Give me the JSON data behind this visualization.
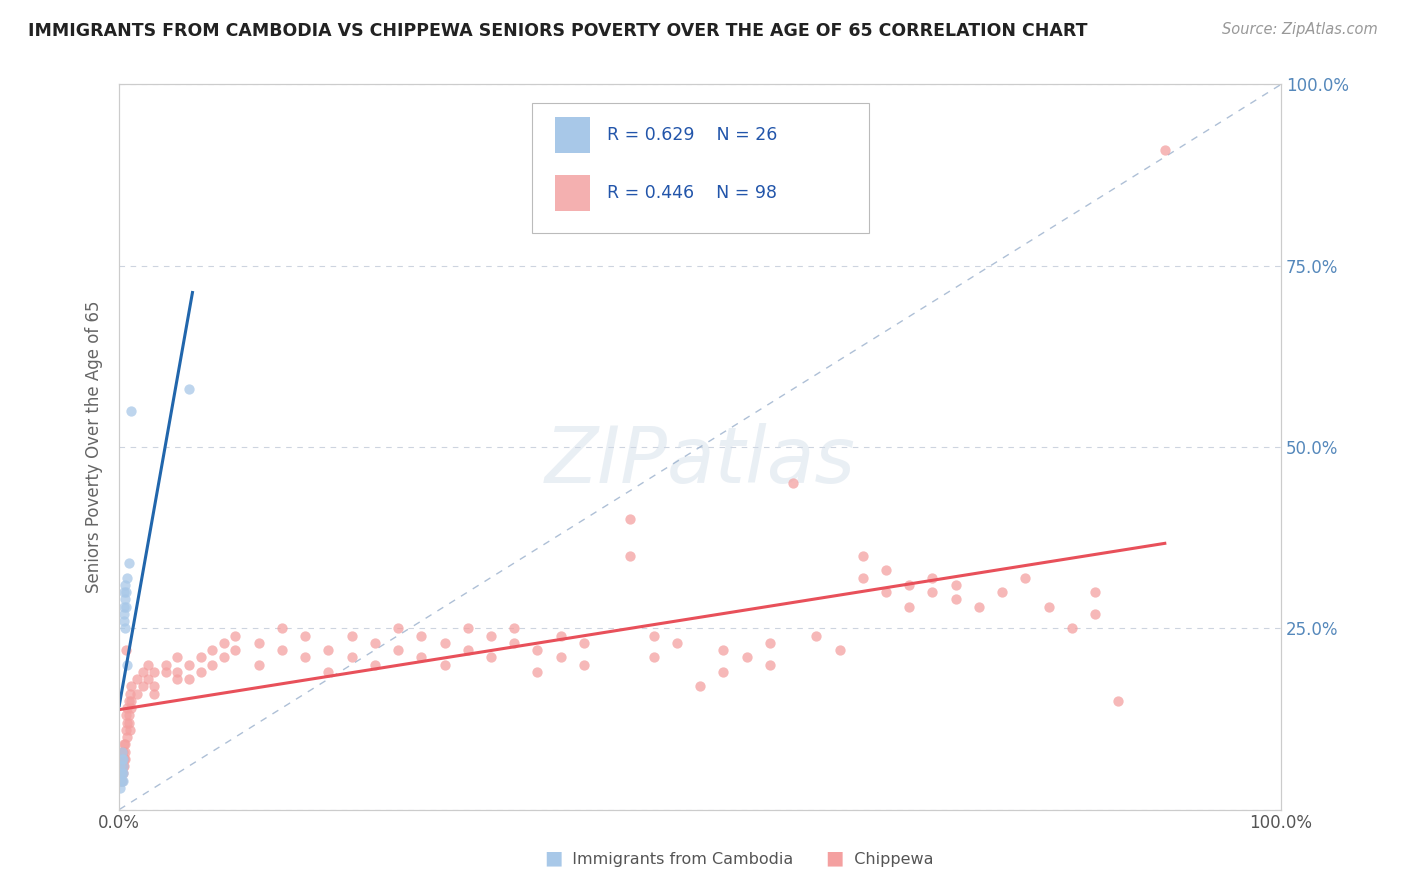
{
  "title": "IMMIGRANTS FROM CAMBODIA VS CHIPPEWA SENIORS POVERTY OVER THE AGE OF 65 CORRELATION CHART",
  "source": "Source: ZipAtlas.com",
  "ylabel": "Seniors Poverty Over the Age of 65",
  "xlim": [
    0,
    1
  ],
  "ylim": [
    0,
    1
  ],
  "watermark": "ZIPatlas",
  "blue_color": "#a8c8e8",
  "pink_color": "#f4a0a0",
  "blue_line_color": "#2166ac",
  "pink_line_color": "#e8505a",
  "blue_scatter": [
    [
      0.001,
      0.04
    ],
    [
      0.001,
      0.05
    ],
    [
      0.001,
      0.06
    ],
    [
      0.001,
      0.03
    ],
    [
      0.002,
      0.07
    ],
    [
      0.002,
      0.05
    ],
    [
      0.002,
      0.04
    ],
    [
      0.002,
      0.08
    ],
    [
      0.003,
      0.06
    ],
    [
      0.003,
      0.05
    ],
    [
      0.003,
      0.07
    ],
    [
      0.003,
      0.04
    ],
    [
      0.004,
      0.28
    ],
    [
      0.004,
      0.3
    ],
    [
      0.004,
      0.27
    ],
    [
      0.004,
      0.26
    ],
    [
      0.005,
      0.29
    ],
    [
      0.005,
      0.31
    ],
    [
      0.005,
      0.25
    ],
    [
      0.006,
      0.3
    ],
    [
      0.006,
      0.28
    ],
    [
      0.007,
      0.32
    ],
    [
      0.007,
      0.2
    ],
    [
      0.008,
      0.34
    ],
    [
      0.01,
      0.55
    ],
    [
      0.06,
      0.58
    ]
  ],
  "pink_scatter": [
    [
      0.001,
      0.05
    ],
    [
      0.001,
      0.06
    ],
    [
      0.001,
      0.04
    ],
    [
      0.001,
      0.07
    ],
    [
      0.002,
      0.08
    ],
    [
      0.002,
      0.05
    ],
    [
      0.002,
      0.06
    ],
    [
      0.002,
      0.04
    ],
    [
      0.003,
      0.06
    ],
    [
      0.003,
      0.07
    ],
    [
      0.003,
      0.05
    ],
    [
      0.003,
      0.08
    ],
    [
      0.004,
      0.09
    ],
    [
      0.004,
      0.07
    ],
    [
      0.004,
      0.06
    ],
    [
      0.005,
      0.09
    ],
    [
      0.005,
      0.07
    ],
    [
      0.005,
      0.08
    ],
    [
      0.006,
      0.22
    ],
    [
      0.006,
      0.11
    ],
    [
      0.006,
      0.13
    ],
    [
      0.007,
      0.12
    ],
    [
      0.007,
      0.14
    ],
    [
      0.007,
      0.1
    ],
    [
      0.008,
      0.15
    ],
    [
      0.008,
      0.12
    ],
    [
      0.008,
      0.13
    ],
    [
      0.009,
      0.16
    ],
    [
      0.009,
      0.11
    ],
    [
      0.01,
      0.17
    ],
    [
      0.01,
      0.14
    ],
    [
      0.01,
      0.15
    ],
    [
      0.015,
      0.18
    ],
    [
      0.015,
      0.16
    ],
    [
      0.02,
      0.17
    ],
    [
      0.02,
      0.19
    ],
    [
      0.025,
      0.2
    ],
    [
      0.025,
      0.18
    ],
    [
      0.03,
      0.17
    ],
    [
      0.03,
      0.19
    ],
    [
      0.03,
      0.16
    ],
    [
      0.04,
      0.19
    ],
    [
      0.04,
      0.2
    ],
    [
      0.05,
      0.18
    ],
    [
      0.05,
      0.21
    ],
    [
      0.05,
      0.19
    ],
    [
      0.06,
      0.2
    ],
    [
      0.06,
      0.18
    ],
    [
      0.07,
      0.19
    ],
    [
      0.07,
      0.21
    ],
    [
      0.08,
      0.22
    ],
    [
      0.08,
      0.2
    ],
    [
      0.09,
      0.21
    ],
    [
      0.09,
      0.23
    ],
    [
      0.1,
      0.22
    ],
    [
      0.1,
      0.24
    ],
    [
      0.12,
      0.23
    ],
    [
      0.12,
      0.2
    ],
    [
      0.14,
      0.25
    ],
    [
      0.14,
      0.22
    ],
    [
      0.16,
      0.24
    ],
    [
      0.16,
      0.21
    ],
    [
      0.18,
      0.19
    ],
    [
      0.18,
      0.22
    ],
    [
      0.2,
      0.24
    ],
    [
      0.2,
      0.21
    ],
    [
      0.22,
      0.23
    ],
    [
      0.22,
      0.2
    ],
    [
      0.24,
      0.22
    ],
    [
      0.24,
      0.25
    ],
    [
      0.26,
      0.24
    ],
    [
      0.26,
      0.21
    ],
    [
      0.28,
      0.23
    ],
    [
      0.28,
      0.2
    ],
    [
      0.3,
      0.25
    ],
    [
      0.3,
      0.22
    ],
    [
      0.32,
      0.24
    ],
    [
      0.32,
      0.21
    ],
    [
      0.34,
      0.23
    ],
    [
      0.34,
      0.25
    ],
    [
      0.36,
      0.22
    ],
    [
      0.36,
      0.19
    ],
    [
      0.38,
      0.21
    ],
    [
      0.38,
      0.24
    ],
    [
      0.4,
      0.23
    ],
    [
      0.4,
      0.2
    ],
    [
      0.44,
      0.35
    ],
    [
      0.44,
      0.4
    ],
    [
      0.46,
      0.24
    ],
    [
      0.46,
      0.21
    ],
    [
      0.48,
      0.23
    ],
    [
      0.5,
      0.17
    ],
    [
      0.52,
      0.22
    ],
    [
      0.52,
      0.19
    ],
    [
      0.54,
      0.21
    ],
    [
      0.56,
      0.23
    ],
    [
      0.56,
      0.2
    ],
    [
      0.58,
      0.45
    ],
    [
      0.6,
      0.24
    ],
    [
      0.62,
      0.22
    ],
    [
      0.64,
      0.35
    ],
    [
      0.64,
      0.32
    ],
    [
      0.66,
      0.3
    ],
    [
      0.66,
      0.33
    ],
    [
      0.68,
      0.31
    ],
    [
      0.68,
      0.28
    ],
    [
      0.7,
      0.3
    ],
    [
      0.7,
      0.32
    ],
    [
      0.72,
      0.29
    ],
    [
      0.72,
      0.31
    ],
    [
      0.74,
      0.28
    ],
    [
      0.76,
      0.3
    ],
    [
      0.78,
      0.32
    ],
    [
      0.8,
      0.28
    ],
    [
      0.82,
      0.25
    ],
    [
      0.84,
      0.3
    ],
    [
      0.84,
      0.27
    ],
    [
      0.86,
      0.15
    ],
    [
      0.9,
      0.91
    ]
  ],
  "background_color": "#ffffff",
  "grid_color": "#c8d0dc",
  "title_color": "#333333",
  "axis_label_color": "#666666"
}
